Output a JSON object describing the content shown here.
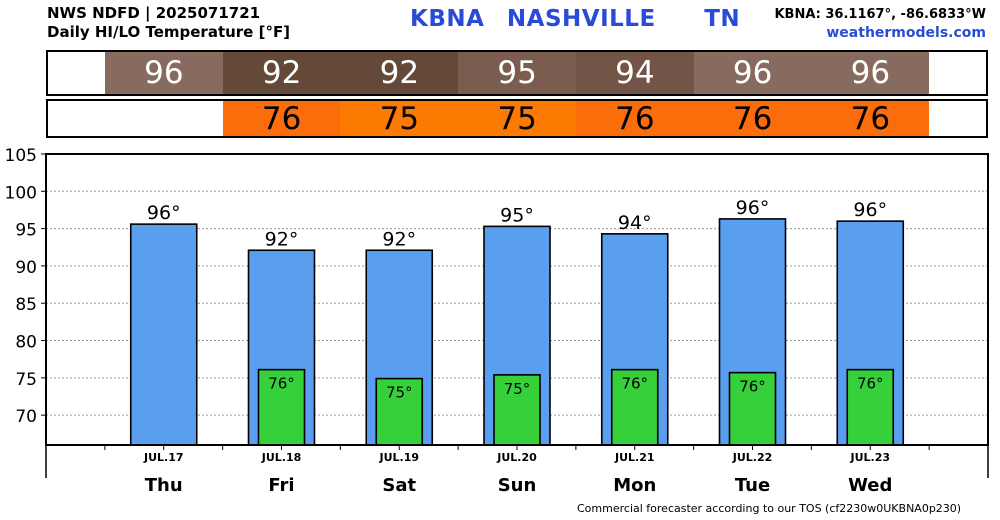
{
  "header": {
    "line1": "NWS NDFD | 2025071721",
    "line2": "Daily HI/LO Temperature [°F]",
    "station": "KBNA",
    "city": "NASHVILLE",
    "state": "TN",
    "coords": "KBNA: 36.1167°, -86.6833°W",
    "site": "weathermodels.com"
  },
  "footer": "Commercial forecaster according to our TOS (cf2230w0UKBNA0p230)",
  "hi_strip": [
    {
      "value": "96",
      "color": "#876b5e"
    },
    {
      "value": "92",
      "color": "#644838"
    },
    {
      "value": "92",
      "color": "#644838"
    },
    {
      "value": "95",
      "color": "#7b5d4f"
    },
    {
      "value": "94",
      "color": "#725546"
    },
    {
      "value": "96",
      "color": "#876b5e"
    },
    {
      "value": "96",
      "color": "#876b5e"
    }
  ],
  "lo_strip": [
    {
      "value": "",
      "color": "#ffffff"
    },
    {
      "value": "76",
      "color": "#fb6d0b"
    },
    {
      "value": "75",
      "color": "#fd7a02"
    },
    {
      "value": "75",
      "color": "#fd7a02"
    },
    {
      "value": "76",
      "color": "#fb6d0b"
    },
    {
      "value": "76",
      "color": "#fb6d0b"
    },
    {
      "value": "76",
      "color": "#fb6d0b"
    }
  ],
  "chart_data": {
    "type": "bar",
    "categories": [
      "JUL.17",
      "JUL.18",
      "JUL.19",
      "JUL.20",
      "JUL.21",
      "JUL.22",
      "JUL.23"
    ],
    "days": [
      "Thu",
      "Fri",
      "Sat",
      "Sun",
      "Mon",
      "Tue",
      "Wed"
    ],
    "series": [
      {
        "values": [
          95.6,
          92.1,
          92.1,
          95.3,
          94.3,
          96.3,
          96.0
        ],
        "labels": [
          "96°",
          "92°",
          "92°",
          "95°",
          "94°",
          "96°",
          "96°"
        ],
        "color": "#5a9ef0"
      },
      {
        "values": [
          null,
          76.1,
          74.9,
          75.4,
          76.1,
          75.7,
          76.1
        ],
        "labels": [
          "",
          "76°",
          "75°",
          "75°",
          "76°",
          "76°",
          "76°"
        ],
        "color": "#36d13a"
      }
    ],
    "yticks": [
      70,
      75,
      80,
      85,
      90,
      95,
      100,
      105
    ],
    "ylim": [
      66,
      105
    ],
    "grid": true
  }
}
